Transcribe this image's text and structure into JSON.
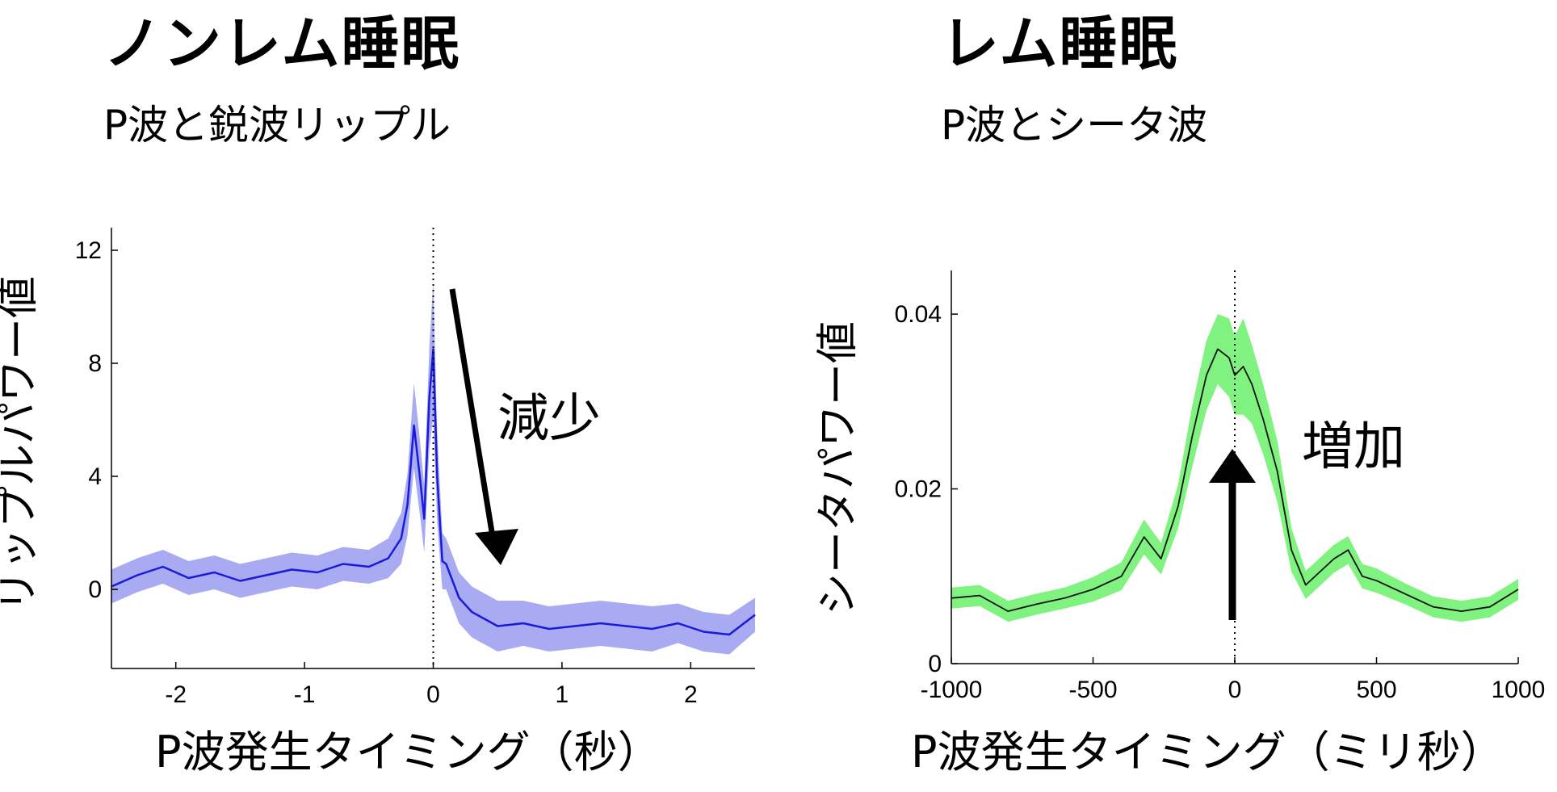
{
  "panels": [
    {
      "title": "ノンレム睡眠",
      "subtitle": "P波と鋭波リップル"
    },
    {
      "title": "レム睡眠",
      "subtitle": "P波とシータ波"
    }
  ],
  "chart_data": [
    {
      "type": "line",
      "xlabel": "P波発生タイミング（秒）",
      "ylabel": "リップルパワー値",
      "xlim": [
        -2.5,
        2.5
      ],
      "ylim": [
        -2.8,
        12.8
      ],
      "xticks": [
        -2,
        -1,
        0,
        1,
        2
      ],
      "xtick_labels": [
        "-2",
        "-1",
        "0",
        "1",
        "2"
      ],
      "yticks": [
        0,
        4,
        8,
        12
      ],
      "ytick_labels": [
        "0",
        "4",
        "8",
        "12"
      ],
      "line_color": "#1a1adb",
      "band_color": "#a8aaf2",
      "annotation": "減少",
      "series": [
        {
          "x": [
            -2.5,
            -2.3,
            -2.1,
            -1.9,
            -1.7,
            -1.5,
            -1.3,
            -1.1,
            -0.9,
            -0.7,
            -0.5,
            -0.35,
            -0.25,
            -0.2,
            -0.15,
            -0.1,
            -0.07,
            -0.03,
            0,
            0.03,
            0.07,
            0.1,
            0.15,
            0.2,
            0.3,
            0.5,
            0.7,
            0.9,
            1.1,
            1.3,
            1.5,
            1.7,
            1.9,
            2.1,
            2.3,
            2.5
          ],
          "y": [
            0.1,
            0.5,
            0.8,
            0.4,
            0.6,
            0.3,
            0.5,
            0.7,
            0.6,
            0.9,
            0.8,
            1.1,
            1.8,
            3.0,
            5.8,
            3.8,
            2.5,
            6.8,
            8.5,
            4.0,
            1.0,
            0.9,
            0.3,
            -0.3,
            -0.8,
            -1.3,
            -1.2,
            -1.4,
            -1.3,
            -1.2,
            -1.3,
            -1.4,
            -1.2,
            -1.5,
            -1.6,
            -0.9
          ],
          "band": [
            0.6,
            0.6,
            0.6,
            0.6,
            0.6,
            0.6,
            0.6,
            0.6,
            0.6,
            0.6,
            0.6,
            0.7,
            0.9,
            1.1,
            1.5,
            1.3,
            1.2,
            1.8,
            2.4,
            1.6,
            1.0,
            0.9,
            0.9,
            0.9,
            0.9,
            0.9,
            0.8,
            0.8,
            0.8,
            0.8,
            0.8,
            0.8,
            0.7,
            0.7,
            0.7,
            0.6
          ]
        }
      ]
    },
    {
      "type": "line",
      "xlabel": "P波発生タイミング（ミリ秒）",
      "ylabel": "シータパワー値",
      "xlim": [
        -1000,
        1000
      ],
      "ylim": [
        0,
        0.045
      ],
      "xticks": [
        -1000,
        -500,
        0,
        500,
        1000
      ],
      "xtick_labels": [
        "-1000",
        "-500",
        "0",
        "500",
        "1000"
      ],
      "yticks": [
        0,
        0.02,
        0.04
      ],
      "ytick_labels": [
        "0",
        "0.02",
        "0.04"
      ],
      "line_color": "#111111",
      "band_color": "#7ff27f",
      "annotation": "増加",
      "series": [
        {
          "x": [
            -1000,
            -900,
            -800,
            -700,
            -600,
            -500,
            -400,
            -320,
            -260,
            -200,
            -150,
            -100,
            -60,
            -20,
            0,
            30,
            60,
            100,
            150,
            200,
            250,
            300,
            350,
            400,
            450,
            500,
            600,
            700,
            800,
            900,
            1000
          ],
          "y": [
            0.0075,
            0.0078,
            0.006,
            0.0068,
            0.0075,
            0.0085,
            0.01,
            0.0145,
            0.012,
            0.018,
            0.026,
            0.033,
            0.036,
            0.035,
            0.033,
            0.034,
            0.032,
            0.028,
            0.022,
            0.013,
            0.009,
            0.0105,
            0.012,
            0.013,
            0.01,
            0.0095,
            0.008,
            0.0065,
            0.006,
            0.0065,
            0.0085
          ],
          "band": [
            0.0012,
            0.0012,
            0.0012,
            0.0012,
            0.0012,
            0.0014,
            0.0016,
            0.002,
            0.0018,
            0.0025,
            0.0035,
            0.004,
            0.004,
            0.0045,
            0.0045,
            0.0055,
            0.0045,
            0.004,
            0.0035,
            0.0025,
            0.0016,
            0.0016,
            0.0016,
            0.0016,
            0.0014,
            0.0014,
            0.0012,
            0.0012,
            0.0012,
            0.0012,
            0.0012
          ]
        }
      ]
    }
  ]
}
